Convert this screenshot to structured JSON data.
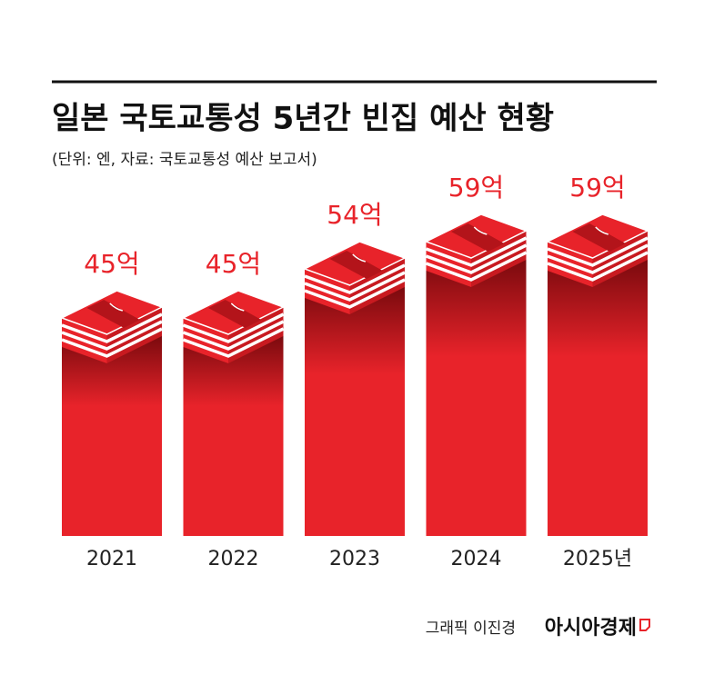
{
  "chart_data": {
    "type": "bar",
    "title": "일본 국토교통성 5년간 빈집 예산 현황",
    "subtitle": "(단위: 엔, 자료: 국토교통성 예산 보고서)",
    "categories": [
      "2021",
      "2022",
      "2023",
      "2024",
      "2025년"
    ],
    "values": [
      45,
      45,
      54,
      59,
      59
    ],
    "value_labels": [
      "45억",
      "45억",
      "54억",
      "59억",
      "59억"
    ],
    "color": "#e8232a",
    "credit": "그래픽 이진경",
    "publisher": "아시아경제"
  }
}
